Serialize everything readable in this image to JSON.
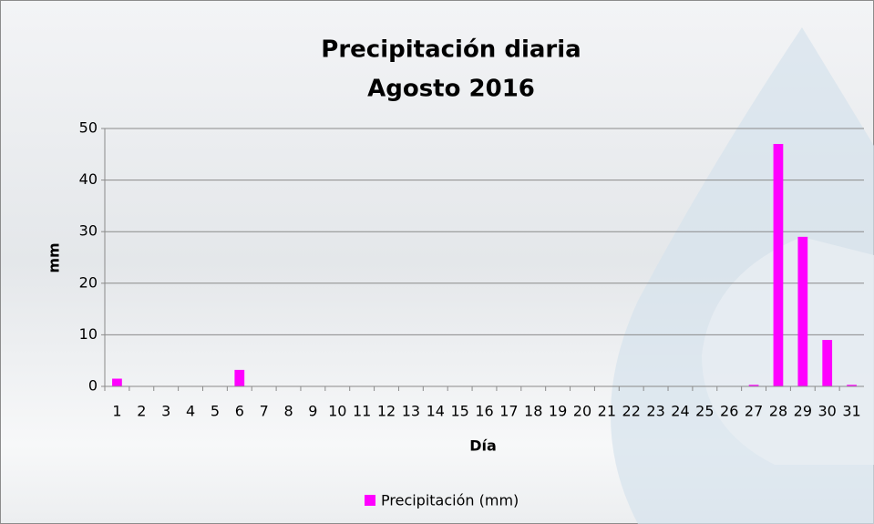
{
  "chart_data": {
    "type": "bar",
    "title": "Precipitación diaria",
    "subtitle": "Agosto 2016",
    "x_label": "Día",
    "y_label": "mm",
    "categories": [
      "1",
      "2",
      "3",
      "4",
      "5",
      "6",
      "7",
      "8",
      "9",
      "10",
      "11",
      "12",
      "13",
      "14",
      "15",
      "16",
      "17",
      "18",
      "19",
      "20",
      "21",
      "22",
      "23",
      "24",
      "25",
      "26",
      "27",
      "28",
      "29",
      "30",
      "31"
    ],
    "series": [
      {
        "name": "Precipitación (mm)",
        "color": "#ff00ff",
        "values": [
          1.5,
          0,
          0,
          0,
          0,
          3.2,
          0,
          0,
          0,
          0,
          0,
          0,
          0,
          0,
          0,
          0,
          0,
          0,
          0,
          0,
          0,
          0,
          0,
          0,
          0,
          0,
          0.3,
          47,
          29,
          9,
          0.3
        ]
      }
    ],
    "ylim": [
      0,
      50
    ],
    "yticks": [
      0,
      10,
      20,
      30,
      40,
      50
    ],
    "grid": true,
    "legend": "bottom"
  }
}
